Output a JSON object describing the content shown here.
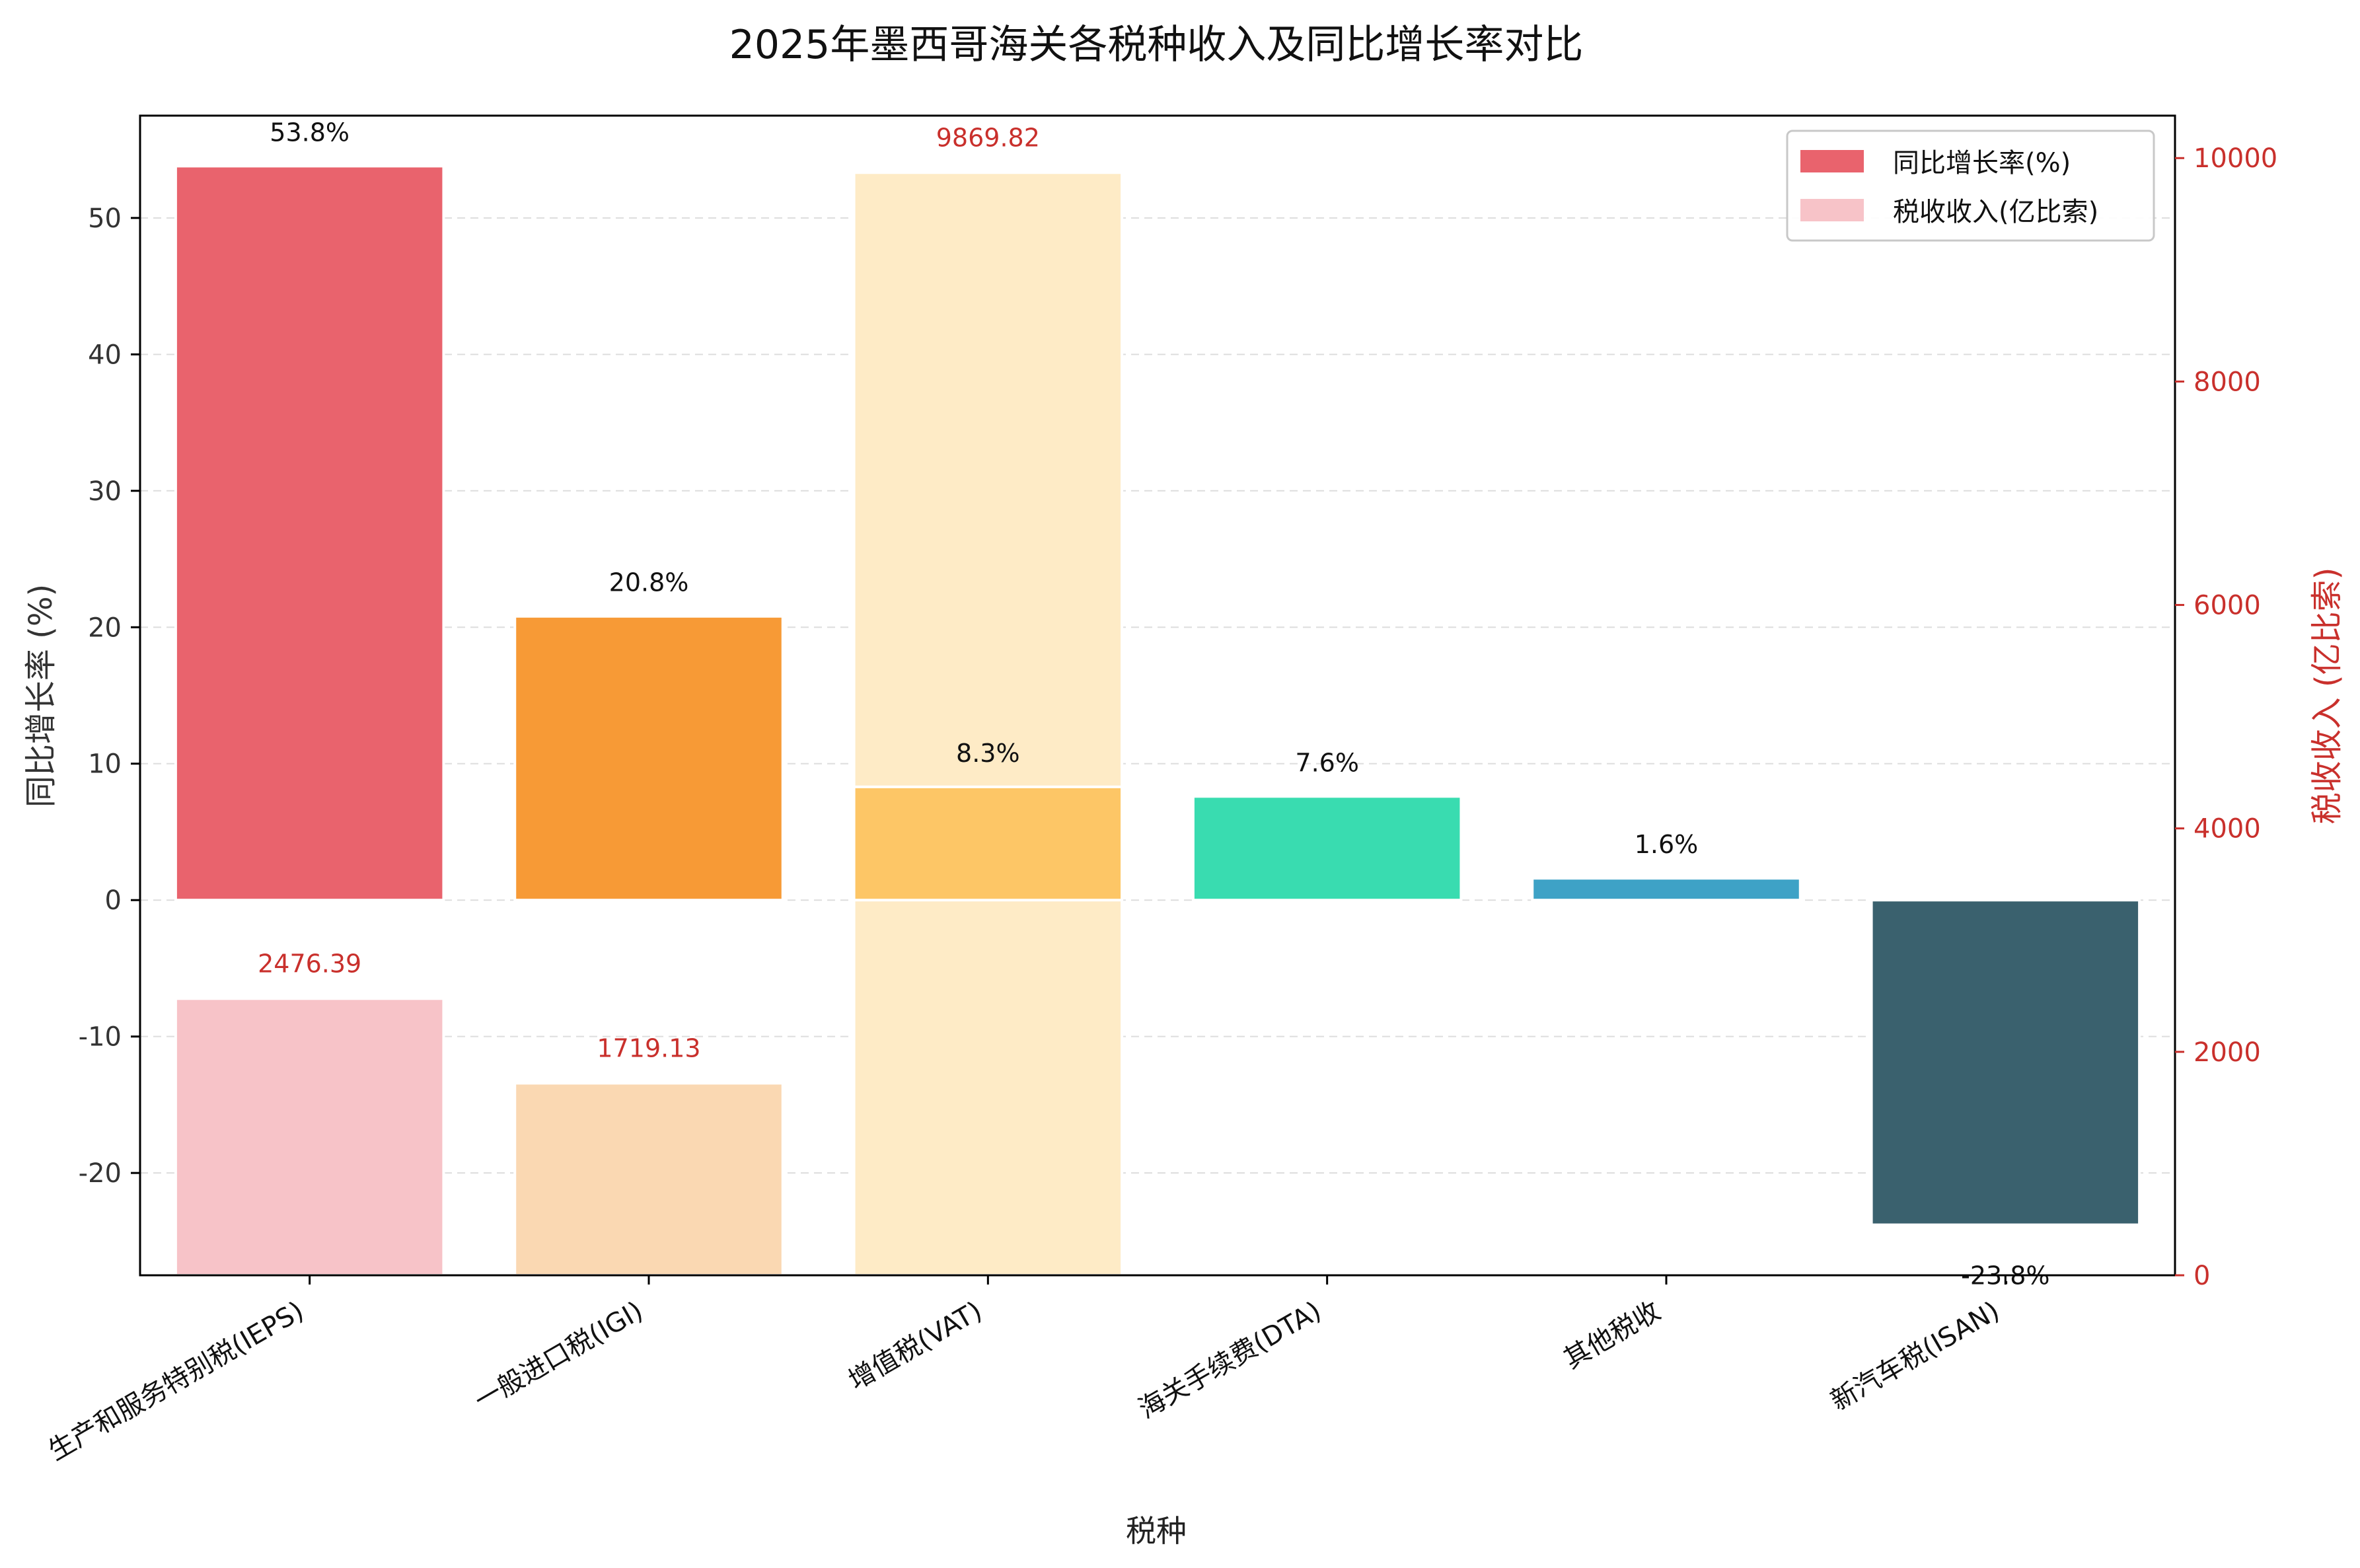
{
  "chart_data": {
    "type": "bar",
    "title": "2025年墨西哥海关各税种收入及同比增长率对比",
    "xlabel": "税种",
    "ylabel_left": "同比增长率 (%)",
    "ylabel_right": "税收收入 (亿比索)",
    "categories": [
      "生产和服务特别税(IEPS)",
      "一般进口税(IGI)",
      "增值税(VAT)",
      "海关手续费(DTA)",
      "其他税收",
      "新汽车税(ISAN)"
    ],
    "left_axis": {
      "ylim": [
        -27.5,
        57.5
      ],
      "ticks": [
        -20,
        -10,
        0,
        10,
        20,
        30,
        40,
        50
      ],
      "tick_labels": [
        "-20",
        "-10",
        "0",
        "10",
        "20",
        "30",
        "40",
        "50"
      ]
    },
    "right_axis": {
      "ylim": [
        0,
        10380
      ],
      "ticks": [
        0,
        2000,
        4000,
        6000,
        8000,
        10000
      ],
      "tick_labels": [
        "0",
        "2000",
        "4000",
        "6000",
        "8000",
        "10000"
      ]
    },
    "series": [
      {
        "name": "同比增长率(%)",
        "axis": "left",
        "values": [
          53.8,
          20.8,
          8.3,
          7.6,
          1.6,
          -23.8
        ],
        "labels": [
          "53.8%",
          "20.8%",
          "8.3%",
          "7.6%",
          "1.6%",
          "-23.8%"
        ],
        "colors": [
          "#E9636D",
          "#F79A36",
          "#FDC666",
          "#39DCB0",
          "#3EA2C6",
          "#3A616E"
        ]
      },
      {
        "name": "税收收入(亿比索)",
        "axis": "right",
        "values": [
          2476.39,
          1719.13,
          9869.82,
          null,
          null,
          null
        ],
        "labels": [
          "2476.39",
          "1719.13",
          "9869.82"
        ],
        "colors": [
          "#F7C3C8",
          "#FAD8B2",
          "#FEEBC6"
        ]
      }
    ],
    "legend": {
      "placement": "top-right",
      "entries": [
        {
          "label": "同比增长率(%)",
          "color": "#E9636D"
        },
        {
          "label": "税收收入(亿比索)",
          "color": "#F7C3C8"
        }
      ]
    },
    "grid": true,
    "accent_right_axis": "#C9302C"
  }
}
